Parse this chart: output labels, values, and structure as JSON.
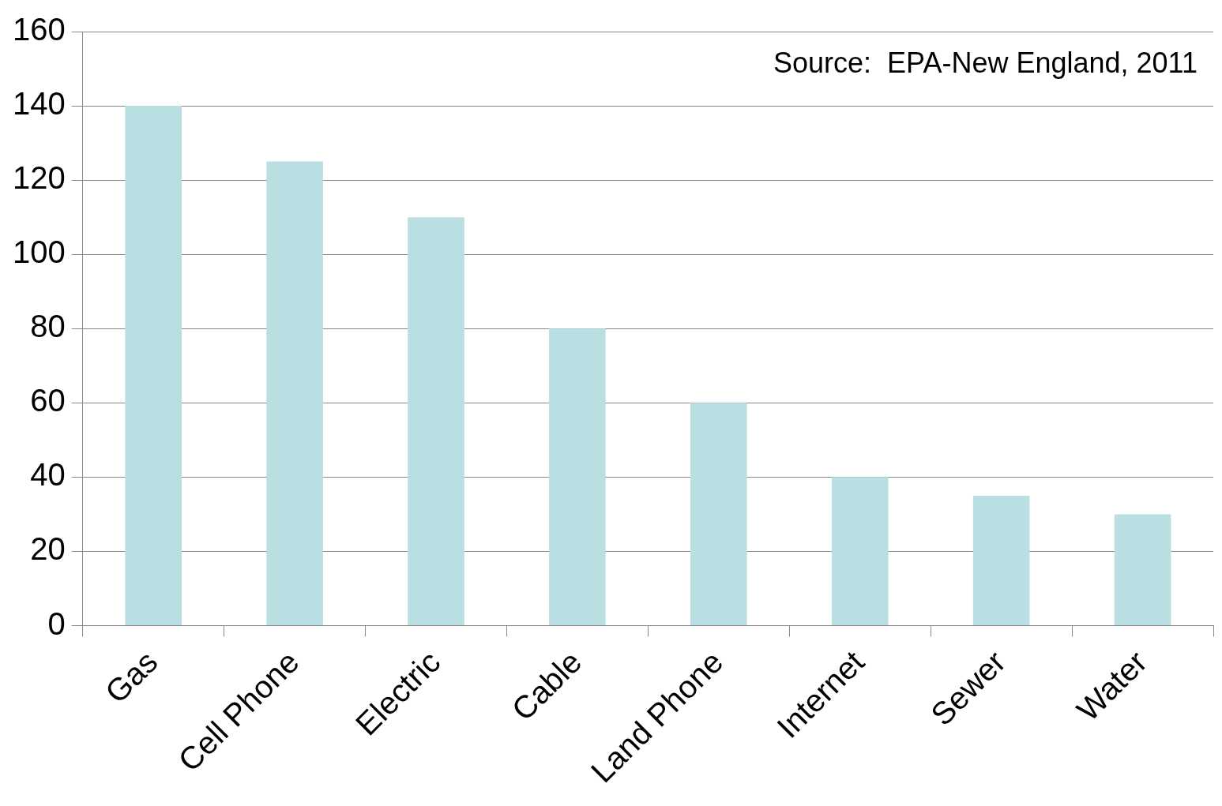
{
  "chart_data": {
    "type": "bar",
    "categories": [
      "Gas",
      "Cell Phone",
      "Electric",
      "Cable",
      "Land Phone",
      "Internet",
      "Sewer",
      "Water"
    ],
    "values": [
      140,
      125,
      110,
      80,
      60,
      40,
      35,
      30
    ],
    "color": "#b9dfe2",
    "ylim": [
      0,
      160
    ],
    "yticks": [
      0,
      20,
      40,
      60,
      80,
      100,
      120,
      140,
      160
    ],
    "grid": "y",
    "annotations": [
      "Source:  EPA-New England, 2011"
    ]
  }
}
